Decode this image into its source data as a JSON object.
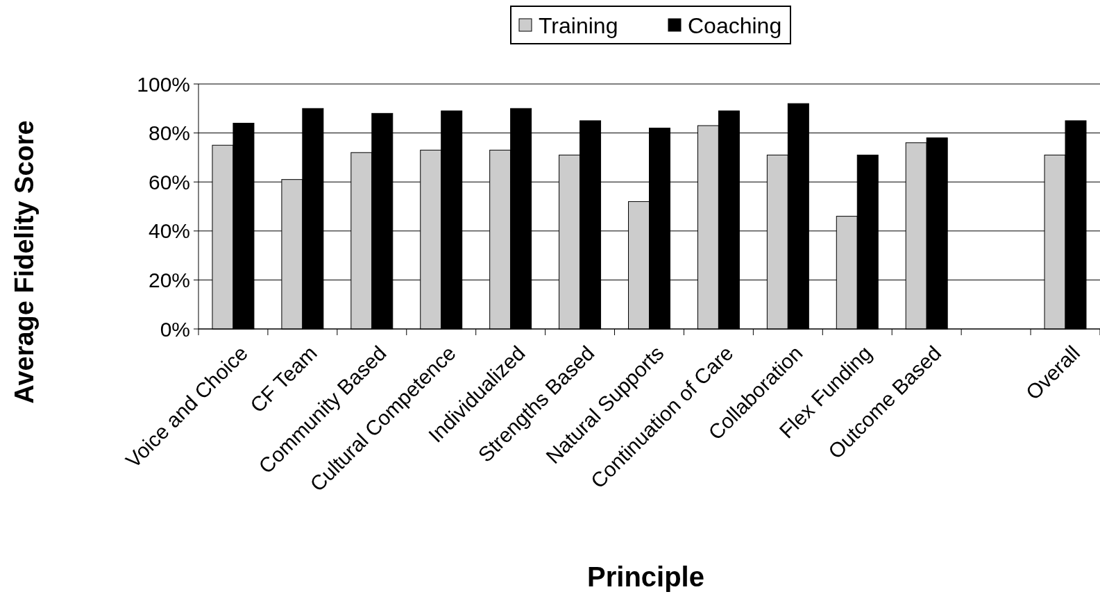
{
  "chart_data": {
    "type": "bar",
    "xlabel": "Principle",
    "ylabel": "Average Fidelity Score",
    "categories": [
      "Voice and Choice",
      "CF Team",
      "Community Based",
      "Cultural Competence",
      "Individualized",
      "Strengths Based",
      "Natural Supports",
      "Continuation of Care",
      "Collaboration",
      "Flex Funding",
      "Outcome Based",
      null,
      "Overall"
    ],
    "series": [
      {
        "name": "Training",
        "color": "#cccccc",
        "values": [
          75,
          61,
          72,
          73,
          73,
          71,
          52,
          83,
          71,
          46,
          76,
          null,
          71
        ]
      },
      {
        "name": "Coaching",
        "color": "#000000",
        "values": [
          84,
          90,
          88,
          89,
          90,
          85,
          82,
          89,
          92,
          71,
          78,
          null,
          85
        ]
      }
    ],
    "ylim": [
      0,
      100
    ],
    "yticks": [
      {
        "value": 0,
        "label": "0%"
      },
      {
        "value": 20,
        "label": "20%"
      },
      {
        "value": 40,
        "label": "40%"
      },
      {
        "value": 60,
        "label": "60%"
      },
      {
        "value": 80,
        "label": "80%"
      },
      {
        "value": 100,
        "label": "100%"
      }
    ],
    "grid": "y",
    "legend": "top"
  }
}
